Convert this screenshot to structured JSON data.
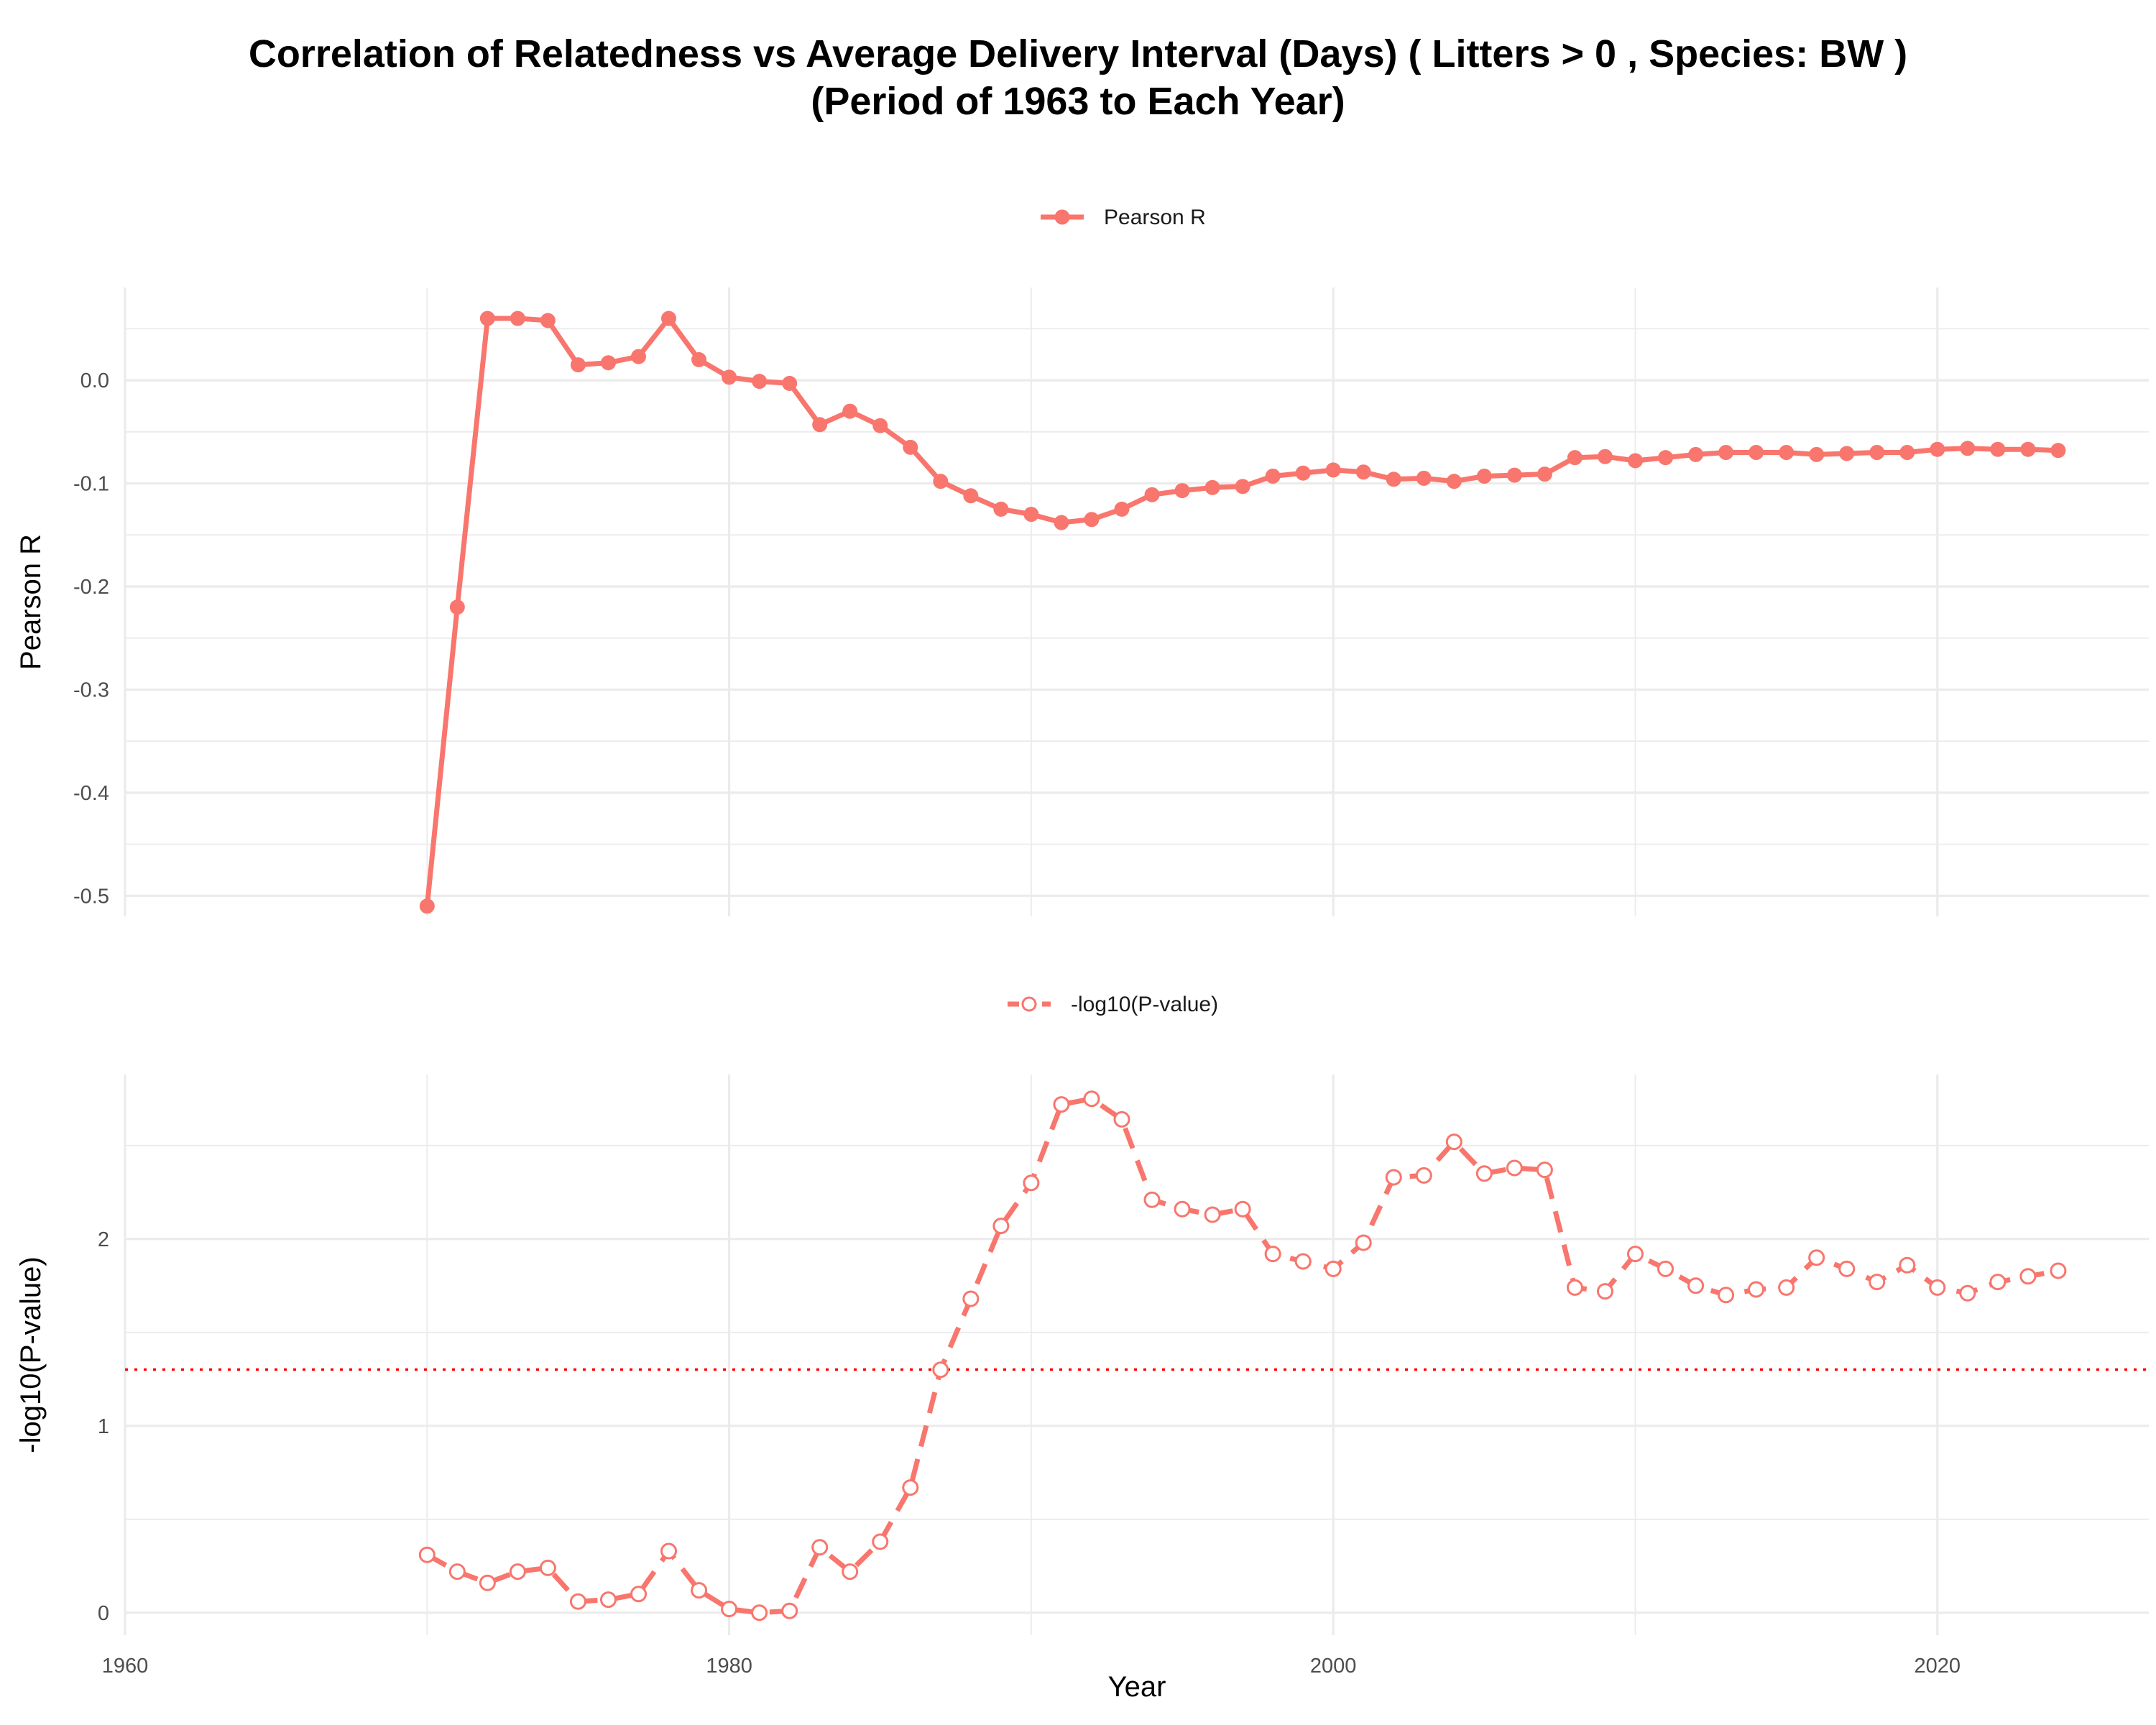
{
  "title_line1": "Correlation of Relatedness vs Average Delivery Interval (Days) ( Litters > 0 , Species: BW )",
  "title_line2": "(Period of 1963 to Each Year)",
  "colors": {
    "series": "#f8766d",
    "threshold": "#ff0000",
    "grid": "#ebebeb"
  },
  "chart_data": [
    {
      "type": "line",
      "marker": "filled-circle",
      "line_style": "solid",
      "legend": "Pearson R",
      "legend_position": "top",
      "xlabel": "",
      "ylabel": "Pearson R",
      "xlim": [
        1960,
        2027
      ],
      "ylim": [
        -0.52,
        0.09
      ],
      "x_ticks": [
        1960,
        1980,
        2000,
        2020
      ],
      "x_tick_labels_shown": false,
      "y_ticks": [
        0.0,
        -0.1,
        -0.2,
        -0.3,
        -0.4,
        -0.5
      ],
      "y_tick_labels": [
        "0.0",
        "-0.1",
        "-0.2",
        "-0.3",
        "-0.4",
        "-0.5"
      ],
      "grid": true,
      "x": [
        1970,
        1971,
        1972,
        1973,
        1974,
        1975,
        1976,
        1977,
        1978,
        1979,
        1980,
        1981,
        1982,
        1983,
        1984,
        1985,
        1986,
        1987,
        1988,
        1989,
        1990,
        1991,
        1992,
        1993,
        1994,
        1995,
        1996,
        1997,
        1998,
        1999,
        2000,
        2001,
        2002,
        2003,
        2004,
        2005,
        2006,
        2007,
        2008,
        2009,
        2010,
        2011,
        2012,
        2013,
        2014,
        2015,
        2016,
        2017,
        2018,
        2019,
        2020,
        2021,
        2022,
        2023,
        2024
      ],
      "y": [
        -0.51,
        -0.22,
        0.06,
        0.06,
        0.058,
        0.015,
        0.017,
        0.023,
        0.06,
        0.02,
        0.003,
        -0.001,
        -0.003,
        -0.043,
        -0.03,
        -0.044,
        -0.065,
        -0.098,
        -0.112,
        -0.125,
        -0.13,
        -0.138,
        -0.135,
        -0.125,
        -0.111,
        -0.107,
        -0.104,
        -0.103,
        -0.093,
        -0.09,
        -0.087,
        -0.089,
        -0.096,
        -0.095,
        -0.098,
        -0.093,
        -0.092,
        -0.091,
        -0.075,
        -0.074,
        -0.078,
        -0.075,
        -0.072,
        -0.07,
        -0.07,
        -0.07,
        -0.072,
        -0.071,
        -0.07,
        -0.07,
        -0.067,
        -0.066,
        -0.067,
        -0.067,
        -0.068
      ]
    },
    {
      "type": "line",
      "marker": "open-circle",
      "line_style": "dashed",
      "legend": "-log10(P-value)",
      "legend_position": "top",
      "xlabel": "Year",
      "ylabel": "-log10(P-value)",
      "xlim": [
        1960,
        2027
      ],
      "ylim": [
        -0.12,
        2.88
      ],
      "x_ticks": [
        1960,
        1980,
        2000,
        2020
      ],
      "x_tick_labels": [
        "1960",
        "1980",
        "2000",
        "2020"
      ],
      "y_ticks": [
        0,
        1,
        2
      ],
      "y_tick_labels": [
        "0",
        "1",
        "2"
      ],
      "grid": true,
      "threshold_line": {
        "y": 1.301,
        "style": "dotted"
      },
      "x": [
        1970,
        1971,
        1972,
        1973,
        1974,
        1975,
        1976,
        1977,
        1978,
        1979,
        1980,
        1981,
        1982,
        1983,
        1984,
        1985,
        1986,
        1987,
        1988,
        1989,
        1990,
        1991,
        1992,
        1993,
        1994,
        1995,
        1996,
        1997,
        1998,
        1999,
        2000,
        2001,
        2002,
        2003,
        2004,
        2005,
        2006,
        2007,
        2008,
        2009,
        2010,
        2011,
        2012,
        2013,
        2014,
        2015,
        2016,
        2017,
        2018,
        2019,
        2020,
        2021,
        2022,
        2023,
        2024
      ],
      "y": [
        0.31,
        0.22,
        0.16,
        0.22,
        0.24,
        0.06,
        0.07,
        0.1,
        0.33,
        0.12,
        0.02,
        0.0,
        0.01,
        0.35,
        0.22,
        0.38,
        0.67,
        1.3,
        1.68,
        2.07,
        2.3,
        2.72,
        2.75,
        2.64,
        2.21,
        2.16,
        2.13,
        2.16,
        1.92,
        1.88,
        1.84,
        1.98,
        2.33,
        2.34,
        2.52,
        2.35,
        2.38,
        2.37,
        1.74,
        1.72,
        1.92,
        1.84,
        1.75,
        1.7,
        1.73,
        1.74,
        1.9,
        1.84,
        1.77,
        1.86,
        1.74,
        1.71,
        1.77,
        1.8,
        1.83
      ]
    }
  ]
}
